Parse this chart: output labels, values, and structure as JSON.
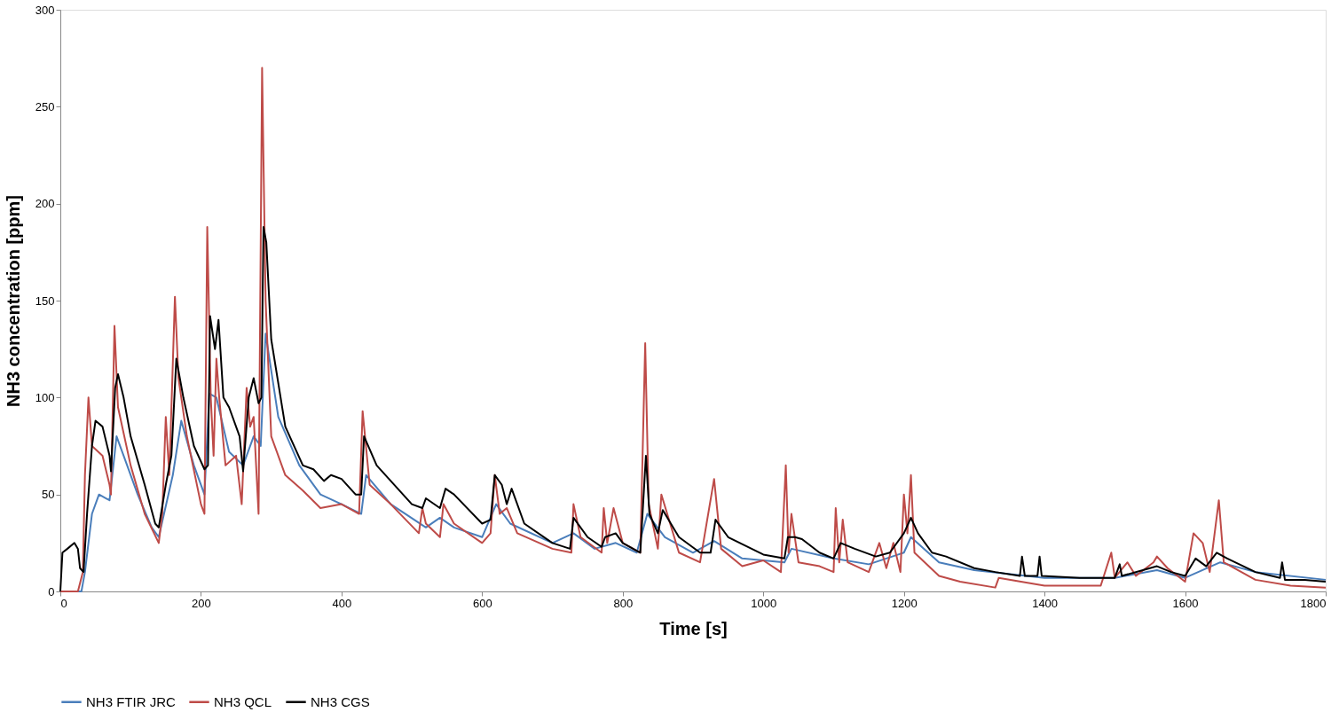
{
  "chart_data": {
    "type": "line",
    "xlabel": "Time [s]",
    "ylabel": "NH3 concentration [ppm]",
    "xlim": [
      0,
      1800
    ],
    "xticks": [
      0,
      200,
      400,
      600,
      800,
      1000,
      1200,
      1400,
      1600,
      1800
    ],
    "ylim": [
      0,
      300
    ],
    "yticks": [
      0,
      50,
      100,
      150,
      200,
      250,
      300
    ],
    "grid": false,
    "legend": "bottom",
    "marker": "none",
    "line_style": "solid",
    "series": [
      {
        "name": "NH3 FTIR JRC",
        "color": "#4a7ebb",
        "x": [
          0,
          30,
          35,
          45,
          55,
          65,
          70,
          80,
          90,
          110,
          130,
          140,
          160,
          172,
          190,
          205,
          212,
          222,
          240,
          260,
          275,
          285,
          292,
          310,
          340,
          370,
          400,
          428,
          435,
          470,
          520,
          540,
          560,
          600,
          620,
          640,
          700,
          730,
          760,
          790,
          820,
          835,
          860,
          900,
          930,
          970,
          1030,
          1040,
          1100,
          1150,
          1200,
          1210,
          1250,
          1300,
          1400,
          1500,
          1560,
          1600,
          1650,
          1700,
          1800
        ],
        "values": [
          0,
          0,
          10,
          40,
          50,
          48,
          47,
          80,
          70,
          50,
          33,
          28,
          60,
          88,
          65,
          50,
          102,
          100,
          72,
          65,
          80,
          75,
          133,
          90,
          65,
          50,
          45,
          40,
          60,
          45,
          33,
          38,
          33,
          28,
          45,
          35,
          25,
          30,
          22,
          25,
          20,
          40,
          28,
          20,
          26,
          17,
          15,
          22,
          17,
          14,
          20,
          28,
          15,
          11,
          7,
          7,
          11,
          7,
          15,
          10,
          6
        ]
      },
      {
        "name": "NH3 QCL",
        "color": "#be4b48",
        "x": [
          0,
          25,
          32,
          35,
          40,
          45,
          60,
          70,
          72,
          77,
          82,
          100,
          120,
          140,
          145,
          150,
          155,
          163,
          168,
          180,
          200,
          205,
          209,
          214,
          218,
          222,
          226,
          235,
          250,
          258,
          265,
          270,
          275,
          282,
          287,
          292,
          300,
          320,
          345,
          370,
          400,
          425,
          430,
          440,
          470,
          510,
          515,
          520,
          540,
          545,
          560,
          600,
          612,
          618,
          625,
          635,
          650,
          700,
          727,
          730,
          740,
          770,
          773,
          778,
          787,
          800,
          825,
          832,
          837,
          850,
          855,
          880,
          910,
          930,
          940,
          970,
          1000,
          1025,
          1032,
          1036,
          1040,
          1050,
          1080,
          1100,
          1103,
          1108,
          1113,
          1120,
          1150,
          1165,
          1175,
          1185,
          1195,
          1200,
          1205,
          1210,
          1215,
          1250,
          1280,
          1330,
          1335,
          1400,
          1480,
          1495,
          1500,
          1518,
          1530,
          1555,
          1560,
          1575,
          1600,
          1612,
          1625,
          1635,
          1648,
          1655,
          1700,
          1750,
          1800
        ],
        "values": [
          0,
          0,
          10,
          60,
          100,
          75,
          70,
          55,
          50,
          137,
          95,
          65,
          40,
          25,
          40,
          90,
          60,
          152,
          110,
          80,
          45,
          40,
          188,
          100,
          70,
          120,
          100,
          65,
          70,
          45,
          105,
          85,
          90,
          40,
          270,
          150,
          80,
          60,
          52,
          43,
          45,
          40,
          93,
          55,
          45,
          30,
          43,
          35,
          28,
          45,
          35,
          25,
          30,
          60,
          40,
          43,
          30,
          22,
          20,
          45,
          28,
          20,
          43,
          25,
          43,
          25,
          20,
          128,
          45,
          22,
          50,
          20,
          15,
          58,
          22,
          13,
          16,
          10,
          65,
          20,
          40,
          15,
          13,
          10,
          43,
          15,
          37,
          15,
          10,
          25,
          12,
          25,
          10,
          50,
          30,
          60,
          20,
          8,
          5,
          2,
          7,
          3,
          3,
          20,
          7,
          15,
          8,
          15,
          18,
          12,
          5,
          30,
          25,
          10,
          47,
          15,
          6,
          3,
          2
        ]
      },
      {
        "name": "NH3 CGS",
        "color": "#000000",
        "x": [
          0,
          3,
          10,
          20,
          25,
          28,
          33,
          38,
          45,
          50,
          60,
          70,
          72,
          78,
          82,
          90,
          100,
          120,
          135,
          140,
          150,
          158,
          165,
          175,
          190,
          205,
          210,
          213,
          220,
          225,
          232,
          240,
          255,
          260,
          268,
          275,
          282,
          286,
          289,
          293,
          300,
          320,
          345,
          360,
          375,
          385,
          400,
          420,
          428,
          432,
          450,
          500,
          515,
          520,
          540,
          548,
          560,
          600,
          612,
          618,
          628,
          635,
          642,
          660,
          700,
          725,
          730,
          750,
          770,
          775,
          790,
          800,
          825,
          833,
          838,
          850,
          857,
          880,
          910,
          925,
          932,
          950,
          1000,
          1030,
          1035,
          1045,
          1055,
          1080,
          1100,
          1110,
          1130,
          1160,
          1180,
          1200,
          1210,
          1220,
          1240,
          1260,
          1300,
          1330,
          1365,
          1368,
          1372,
          1390,
          1393,
          1396,
          1450,
          1500,
          1507,
          1510,
          1540,
          1560,
          1580,
          1600,
          1615,
          1630,
          1645,
          1660,
          1700,
          1735,
          1738,
          1742,
          1770,
          1800
        ],
        "values": [
          0,
          20,
          22,
          25,
          22,
          12,
          10,
          40,
          75,
          88,
          85,
          70,
          62,
          105,
          112,
          100,
          80,
          55,
          35,
          33,
          55,
          70,
          120,
          100,
          75,
          63,
          65,
          142,
          125,
          140,
          100,
          95,
          80,
          62,
          100,
          110,
          97,
          100,
          188,
          180,
          130,
          85,
          65,
          63,
          57,
          60,
          58,
          50,
          50,
          80,
          65,
          45,
          43,
          48,
          43,
          53,
          50,
          35,
          37,
          60,
          55,
          45,
          53,
          35,
          25,
          22,
          38,
          28,
          23,
          28,
          30,
          25,
          20,
          70,
          40,
          30,
          42,
          28,
          20,
          20,
          37,
          28,
          19,
          17,
          28,
          28,
          27,
          20,
          17,
          25,
          22,
          18,
          20,
          30,
          38,
          30,
          20,
          18,
          12,
          10,
          8,
          18,
          8,
          8,
          18,
          8,
          7,
          7,
          14,
          8,
          11,
          13,
          10,
          8,
          17,
          13,
          20,
          17,
          10,
          7,
          15,
          6,
          6,
          5
        ]
      }
    ]
  }
}
